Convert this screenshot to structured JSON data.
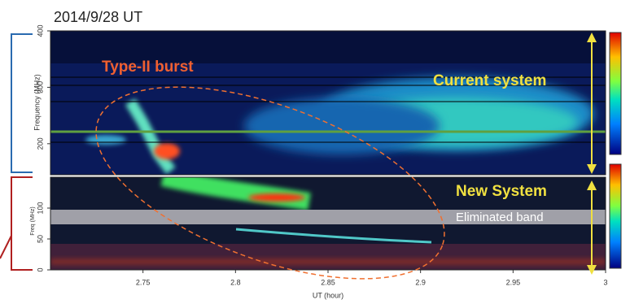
{
  "chart_data": [
    {
      "type": "spectrogram",
      "title": "2014/9/28 UT",
      "ylabel": "Frequency (MHz)",
      "ylim": [
        145,
        400
      ],
      "yticks": [
        200,
        300,
        400
      ],
      "xlim": [
        2.7,
        3.0
      ],
      "annotations": [
        "Type-II burst",
        "Current system"
      ]
    },
    {
      "type": "spectrogram",
      "xlabel": "UT (hour)",
      "ylabel": "Freq (MHz)",
      "xlim": [
        2.7,
        3.0
      ],
      "xticks": [
        2.75,
        2.8,
        2.85,
        2.9,
        2.95,
        3
      ],
      "ylim": [
        0,
        150
      ],
      "yticks": [
        0,
        50,
        100
      ],
      "annotations": [
        "New System",
        "Eliminated band"
      ]
    }
  ]
}
